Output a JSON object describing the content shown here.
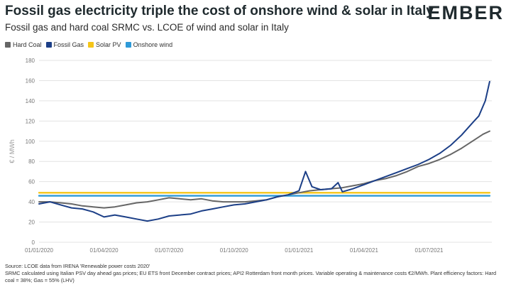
{
  "header": {
    "title": "Fossil gas electricity triple the cost of onshore wind & solar in Italy",
    "subtitle": "Fossil gas and hard coal SRMC vs. LCOE of wind and solar in Italy",
    "logo": "EMBER"
  },
  "footnotes": {
    "line1": "Source: LCOE data from IRENA 'Renewable power costs 2020'",
    "line2": "SRMC calculated using Italian PSV day ahead gas prices; EU ETS front December contract prices; API2 Rotterdam front month prices. Variable operating & maintenance costs €2/MWh. Plant efficiency factors: Hard coal = 38%; Gas = 55% (LHV)"
  },
  "chart_data": {
    "type": "line",
    "ylabel": "€ / MWh",
    "xlabel": "",
    "ylim": [
      0,
      180
    ],
    "yticks": [
      0,
      20,
      40,
      60,
      80,
      100,
      120,
      140,
      160,
      180
    ],
    "grid": true,
    "legend_position": "top-left",
    "x_tick_labels": [
      "01/01/2020",
      "01/04/2020",
      "01/07/2020",
      "01/10/2020",
      "01/01/2021",
      "01/04/2021",
      "01/07/2021"
    ],
    "x_tick_months": [
      0,
      3,
      6,
      9,
      12,
      15,
      18
    ],
    "xlim_months": [
      0,
      20.9
    ],
    "series": [
      {
        "name": "Hard Coal",
        "color": "#666666",
        "x": [
          0,
          0.5,
          1,
          1.5,
          2,
          2.5,
          3,
          3.5,
          4,
          4.5,
          5,
          5.5,
          6,
          6.5,
          7,
          7.5,
          8,
          8.5,
          9,
          9.5,
          10,
          10.5,
          11,
          11.5,
          12,
          12.5,
          13,
          13.5,
          14,
          14.5,
          15,
          15.5,
          16,
          16.5,
          17,
          17.5,
          18,
          18.5,
          19,
          19.5,
          20,
          20.5,
          20.8
        ],
        "values": [
          40,
          40,
          39,
          38,
          36,
          35,
          34,
          35,
          37,
          39,
          40,
          42,
          44,
          43,
          42,
          43,
          41,
          40,
          40,
          40,
          41,
          42,
          45,
          47,
          49,
          51,
          52,
          53,
          54,
          56,
          58,
          61,
          63,
          66,
          70,
          75,
          78,
          82,
          87,
          93,
          100,
          107,
          110
        ]
      },
      {
        "name": "Fossil Gas",
        "color": "#1c3f87",
        "x": [
          0,
          0.5,
          1,
          1.5,
          2,
          2.5,
          3,
          3.5,
          4,
          4.5,
          5,
          5.5,
          6,
          6.5,
          7,
          7.5,
          8,
          8.5,
          9,
          9.5,
          10,
          10.5,
          11,
          11.5,
          12,
          12.3,
          12.6,
          13,
          13.5,
          13.8,
          14,
          14.5,
          15,
          15.5,
          16,
          16.5,
          17,
          17.5,
          18,
          18.5,
          19,
          19.5,
          20,
          20.3,
          20.6,
          20.8
        ],
        "values": [
          38,
          40,
          37,
          34,
          33,
          30,
          25,
          27,
          25,
          23,
          21,
          23,
          26,
          27,
          28,
          31,
          33,
          35,
          37,
          38,
          40,
          42,
          45,
          47,
          51,
          70,
          55,
          52,
          53,
          59,
          50,
          53,
          57,
          61,
          65,
          69,
          73,
          77,
          82,
          88,
          96,
          106,
          118,
          125,
          140,
          159
        ]
      },
      {
        "name": "Solar PV",
        "color": "#f5c518",
        "x": [
          0,
          20.8
        ],
        "values": [
          49,
          49
        ]
      },
      {
        "name": "Onshore wind",
        "color": "#2e9ad8",
        "x": [
          0,
          20.8
        ],
        "values": [
          46,
          46
        ]
      }
    ]
  }
}
